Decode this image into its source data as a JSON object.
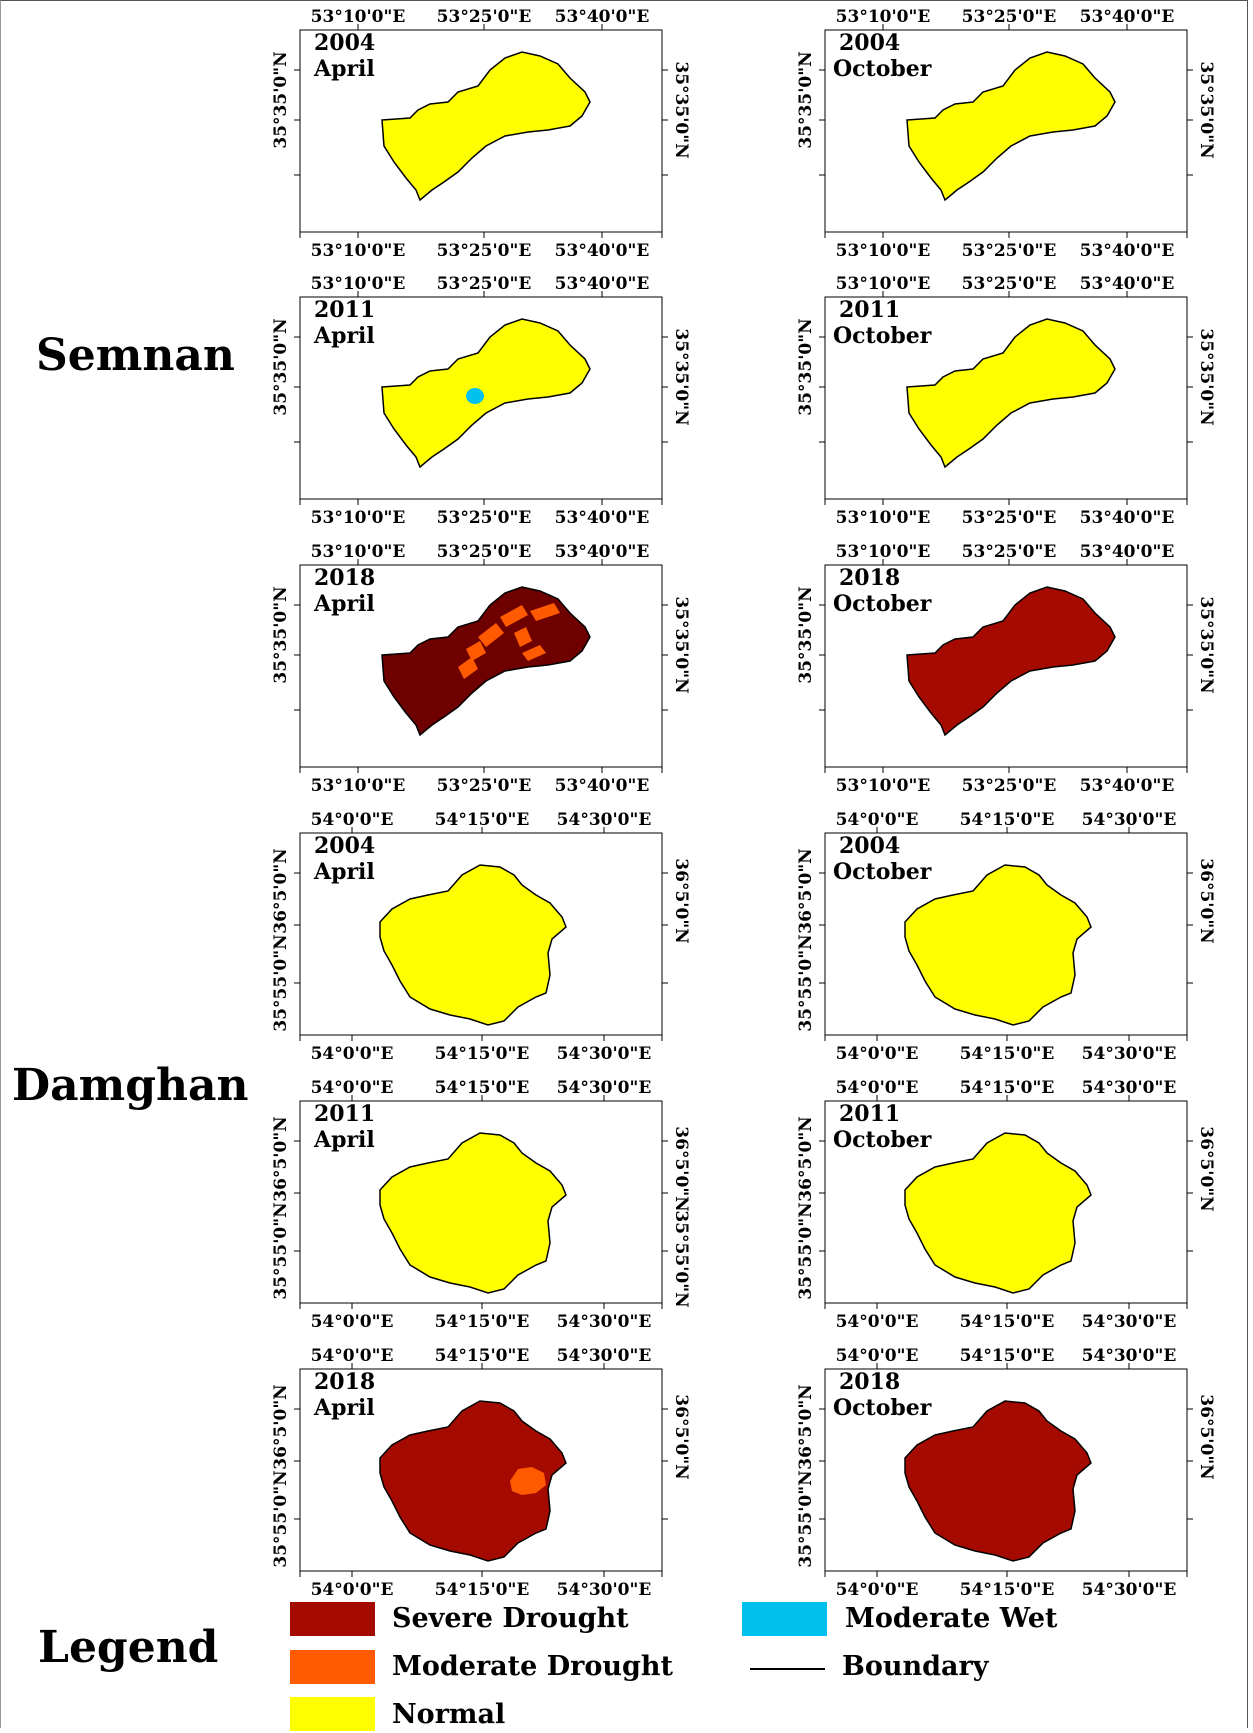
{
  "regions": {
    "semnan": "Semnan",
    "damghan": "Damghan"
  },
  "coords": {
    "semnan_lon": [
      "53°10'0\"E",
      "53°25'0\"E",
      "53°40'0\"E"
    ],
    "semnan_lat": "35°35'0\"N",
    "damghan_lon": [
      "54°0'0\"E",
      "54°15'0\"E",
      "54°30'0\"E"
    ],
    "damghan_lat": [
      "36°5'0\"N",
      "35°55'0\"N"
    ]
  },
  "colors": {
    "severe_drought": "#a50a00",
    "severe_drought_dark": "#6e0000",
    "moderate_drought": "#ff5a00",
    "normal": "#ffff00",
    "moderate_wet": "#00c0ee",
    "boundary": "#000000"
  },
  "panels": [
    {
      "region": "semnan",
      "year": "2004",
      "month": "April",
      "fill": "normal"
    },
    {
      "region": "semnan",
      "year": "2004",
      "month": "October",
      "fill": "normal"
    },
    {
      "region": "semnan",
      "year": "2011",
      "month": "April",
      "fill": "normal",
      "extra": "moderate_wet"
    },
    {
      "region": "semnan",
      "year": "2011",
      "month": "October",
      "fill": "normal"
    },
    {
      "region": "semnan",
      "year": "2018",
      "month": "April",
      "fill": "severe_drought_dark",
      "extra": "moderate_drought"
    },
    {
      "region": "semnan",
      "year": "2018",
      "month": "October",
      "fill": "severe_drought"
    },
    {
      "region": "damghan",
      "year": "2004",
      "month": "April",
      "fill": "normal"
    },
    {
      "region": "damghan",
      "year": "2004",
      "month": "October",
      "fill": "normal"
    },
    {
      "region": "damghan",
      "year": "2011",
      "month": "April",
      "fill": "normal"
    },
    {
      "region": "damghan",
      "year": "2011",
      "month": "October",
      "fill": "normal"
    },
    {
      "region": "damghan",
      "year": "2018",
      "month": "April",
      "fill": "severe_drought",
      "extra": "moderate_drought"
    },
    {
      "region": "damghan",
      "year": "2018",
      "month": "October",
      "fill": "severe_drought"
    }
  ],
  "legend": {
    "title": "Legend",
    "items": [
      {
        "label": "Severe Drought",
        "color": "#a50a00"
      },
      {
        "label": "Moderate Drought",
        "color": "#ff5a00"
      },
      {
        "label": "Normal",
        "color": "#ffff00"
      },
      {
        "label": "Moderate Wet",
        "color": "#00c0ee"
      },
      {
        "label": "Boundary",
        "color": "#000000"
      }
    ]
  }
}
